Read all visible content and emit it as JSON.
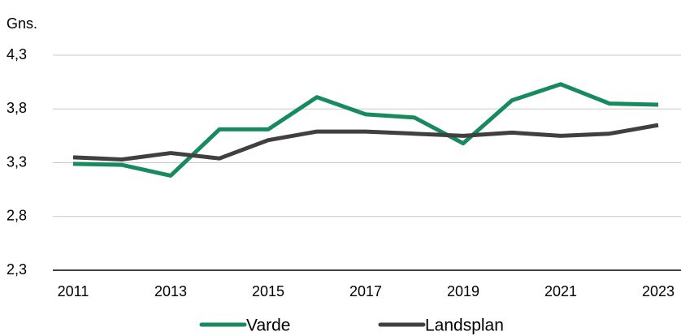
{
  "chart_data": {
    "type": "line",
    "y_label": "Gns.",
    "categories": [
      "2011",
      null,
      "2013",
      null,
      "2015",
      null,
      "2017",
      null,
      "2019",
      null,
      "2021",
      null,
      "2023"
    ],
    "series": [
      {
        "name": "Varde",
        "color": "#178a5e",
        "values": [
          3.29,
          3.28,
          3.18,
          3.61,
          3.61,
          3.91,
          3.75,
          3.72,
          3.48,
          3.88,
          4.03,
          3.85,
          3.84
        ]
      },
      {
        "name": "Landsplan",
        "color": "#404040",
        "values": [
          3.35,
          3.33,
          3.39,
          3.34,
          3.51,
          3.59,
          3.59,
          3.57,
          3.55,
          3.58,
          3.55,
          3.57,
          3.65
        ]
      }
    ],
    "ylim": [
      2.3,
      4.3
    ],
    "yticks": [
      {
        "value": 2.3,
        "label": "2,3"
      },
      {
        "value": 2.8,
        "label": "2,8"
      },
      {
        "value": 3.3,
        "label": "3,3"
      },
      {
        "value": 3.8,
        "label": "3,8"
      },
      {
        "value": 4.3,
        "label": "4,3"
      }
    ],
    "grid": true,
    "legend": "bottom"
  }
}
